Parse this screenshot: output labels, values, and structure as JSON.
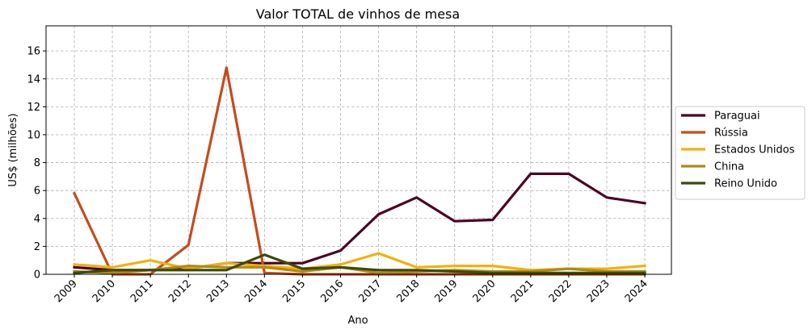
{
  "chart_data": {
    "type": "line",
    "title": "Valor TOTAL de vinhos de mesa",
    "xlabel": "Ano",
    "ylabel": "US$ (milhões)",
    "x": [
      "2009",
      "2010",
      "2011",
      "2012",
      "2013",
      "2014",
      "2015",
      "2016",
      "2017",
      "2018",
      "2019",
      "2020",
      "2021",
      "2022",
      "2023",
      "2024"
    ],
    "ylim": [
      0,
      17.8
    ],
    "yticks": [
      0,
      2,
      4,
      6,
      8,
      10,
      12,
      14,
      16
    ],
    "grid": true,
    "legend_position": "right",
    "series": [
      {
        "name": "Paraguai",
        "color": "#4b0324",
        "values": [
          0.5,
          0.3,
          0.3,
          0.4,
          0.8,
          0.8,
          0.8,
          1.7,
          4.3,
          5.5,
          3.8,
          3.9,
          7.2,
          7.2,
          5.5,
          5.1
        ]
      },
      {
        "name": "Rússia",
        "color": "#c24d1f",
        "values": [
          5.8,
          0.0,
          0.0,
          2.1,
          14.8,
          0.1,
          0.0,
          0.0,
          0.0,
          0.0,
          0.0,
          0.0,
          0.0,
          0.0,
          0.0,
          0.0
        ]
      },
      {
        "name": "Estados Unidos",
        "color": "#f4b00c",
        "values": [
          0.7,
          0.5,
          1.0,
          0.4,
          0.8,
          0.6,
          0.4,
          0.7,
          1.5,
          0.5,
          0.6,
          0.6,
          0.3,
          0.4,
          0.4,
          0.6
        ]
      },
      {
        "name": "China",
        "color": "#b08a12",
        "values": [
          0.2,
          0.1,
          0.3,
          0.6,
          0.5,
          0.5,
          0.2,
          0.5,
          0.1,
          0.2,
          0.3,
          0.2,
          0.2,
          0.4,
          0.2,
          0.2
        ]
      },
      {
        "name": "Reino Unido",
        "color": "#3b4a0a",
        "values": [
          0.1,
          0.3,
          0.3,
          0.3,
          0.3,
          1.4,
          0.4,
          0.5,
          0.3,
          0.3,
          0.2,
          0.1,
          0.1,
          0.1,
          0.1,
          0.1
        ]
      }
    ]
  }
}
